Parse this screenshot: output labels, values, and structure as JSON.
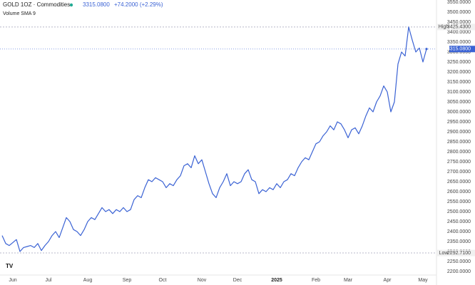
{
  "chart_data": {
    "type": "line",
    "title": "GOLD 1OZ · Commodities",
    "subtitle": "Volume SMA 9",
    "last_price": {
      "value": 3315.08,
      "label": "3315.0800"
    },
    "change": "+74.2000 (+2.29%)",
    "high": {
      "name": "High",
      "value": 3425.43,
      "label": "3425.4300"
    },
    "low": {
      "name": "Low",
      "value": 2292.71,
      "label": "2292.7100"
    },
    "categories": [
      null,
      null,
      null,
      "Jun",
      null,
      null,
      null,
      null,
      null,
      null,
      null,
      null,
      null,
      "Jul",
      null,
      null,
      null,
      null,
      null,
      null,
      null,
      null,
      null,
      null,
      "Aug",
      null,
      null,
      null,
      null,
      null,
      null,
      null,
      null,
      null,
      null,
      "Sep",
      null,
      null,
      null,
      null,
      null,
      null,
      null,
      null,
      null,
      "Oct",
      null,
      null,
      null,
      null,
      null,
      null,
      null,
      null,
      null,
      null,
      "Nov",
      null,
      null,
      null,
      null,
      null,
      null,
      null,
      null,
      null,
      "Dec",
      null,
      null,
      null,
      null,
      null,
      null,
      null,
      null,
      null,
      null,
      "2025",
      null,
      null,
      null,
      null,
      null,
      null,
      null,
      null,
      null,
      null,
      "Feb",
      null,
      null,
      null,
      null,
      null,
      null,
      null,
      null,
      "Mar",
      null,
      null,
      null,
      null,
      null,
      null,
      null,
      null,
      null,
      null,
      "Apr",
      null,
      null,
      null,
      null,
      null,
      null,
      null,
      null,
      null,
      "May",
      null
    ],
    "series": [
      {
        "color": "#3a62d4",
        "values": [
          2380,
          2340,
          2330,
          2345,
          2360,
          2300,
          2320,
          2325,
          2330,
          2320,
          2340,
          2305,
          2330,
          2350,
          2380,
          2400,
          2370,
          2420,
          2470,
          2450,
          2410,
          2400,
          2380,
          2410,
          2450,
          2470,
          2460,
          2490,
          2520,
          2500,
          2510,
          2490,
          2510,
          2500,
          2520,
          2500,
          2510,
          2560,
          2580,
          2570,
          2620,
          2660,
          2650,
          2670,
          2660,
          2650,
          2620,
          2640,
          2630,
          2660,
          2680,
          2730,
          2740,
          2720,
          2780,
          2740,
          2760,
          2700,
          2640,
          2590,
          2570,
          2620,
          2650,
          2690,
          2630,
          2650,
          2640,
          2650,
          2690,
          2710,
          2660,
          2650,
          2590,
          2610,
          2600,
          2620,
          2610,
          2640,
          2620,
          2650,
          2660,
          2690,
          2680,
          2720,
          2750,
          2770,
          2760,
          2800,
          2840,
          2850,
          2880,
          2900,
          2930,
          2910,
          2950,
          2940,
          2910,
          2870,
          2910,
          2920,
          2890,
          2930,
          2980,
          3020,
          3000,
          3050,
          3080,
          3130,
          3100,
          3000,
          3050,
          3240,
          3300,
          3280,
          3425.43,
          3360,
          3300,
          3320,
          3250,
          3315.08
        ]
      }
    ],
    "ylim": [
      2200,
      3550
    ],
    "yticks": [
      {
        "value": 2200,
        "label": "2200.0000"
      },
      {
        "value": 2250,
        "label": "2250.0000"
      },
      {
        "value": 2300,
        "label": "2300.0000"
      },
      {
        "value": 2350,
        "label": "2350.0000"
      },
      {
        "value": 2400,
        "label": "2400.0000"
      },
      {
        "value": 2450,
        "label": "2450.0000"
      },
      {
        "value": 2500,
        "label": "2500.0000"
      },
      {
        "value": 2550,
        "label": "2550.0000"
      },
      {
        "value": 2600,
        "label": "2600.0000"
      },
      {
        "value": 2650,
        "label": "2650.0000"
      },
      {
        "value": 2700,
        "label": "2700.0000"
      },
      {
        "value": 2750,
        "label": "2750.0000"
      },
      {
        "value": 2800,
        "label": "2800.0000"
      },
      {
        "value": 2850,
        "label": "2850.0000"
      },
      {
        "value": 2900,
        "label": "2900.0000"
      },
      {
        "value": 2950,
        "label": "2950.0000"
      },
      {
        "value": 3000,
        "label": "3000.0000"
      },
      {
        "value": 3050,
        "label": "3050.0000"
      },
      {
        "value": 3100,
        "label": "3100.0000"
      },
      {
        "value": 3150,
        "label": "3150.0000"
      },
      {
        "value": 3200,
        "label": "3200.0000"
      },
      {
        "value": 3250,
        "label": "3250.0000"
      },
      {
        "value": 3300,
        "label": "3300.0000"
      },
      {
        "value": 3350,
        "label": "3350.0000"
      },
      {
        "value": 3400,
        "label": "3400.0000"
      },
      {
        "value": 3450,
        "label": "3450.0000"
      },
      {
        "value": 3500,
        "label": "3500.0000"
      },
      {
        "value": 3550,
        "label": "3550.0000"
      }
    ],
    "grid": false
  }
}
